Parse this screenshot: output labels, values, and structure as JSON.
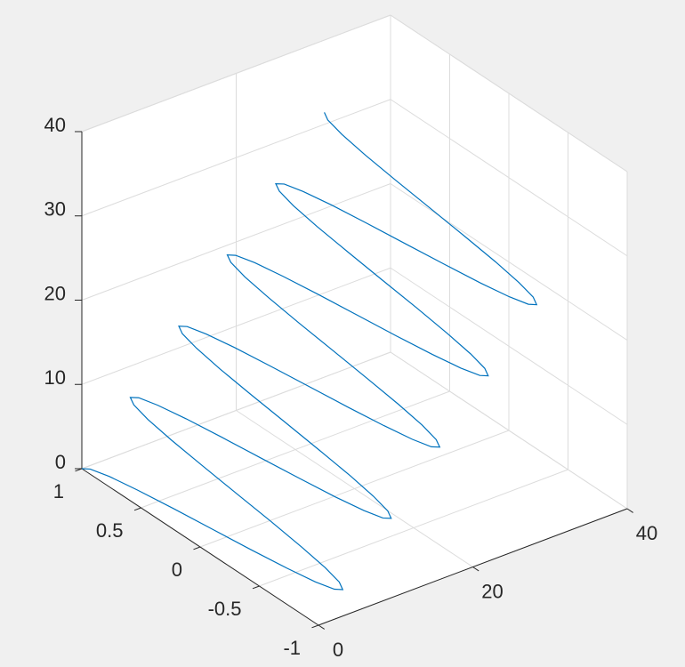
{
  "chart_data": {
    "type": "line3d",
    "x": [
      0,
      0.31,
      0.63,
      0.94,
      1.26,
      1.57,
      1.88,
      2.2,
      2.51,
      2.83,
      3.14,
      3.46,
      3.77,
      4.08,
      4.4,
      4.71,
      5.03,
      5.34,
      5.65,
      5.97,
      6.28,
      6.6,
      6.91,
      7.23,
      7.54,
      7.85,
      8.17,
      8.48,
      8.8,
      9.11,
      9.42,
      9.74,
      10.05,
      10.37,
      10.68,
      11.0,
      11.31,
      11.62,
      11.94,
      12.25,
      12.57,
      12.88,
      13.19,
      13.51,
      13.82,
      14.14,
      14.45,
      14.77,
      15.08,
      15.39,
      15.71,
      16.02,
      16.34,
      16.65,
      16.96,
      17.28,
      17.59,
      17.91,
      18.22,
      18.54,
      18.85,
      19.16,
      19.48,
      19.79,
      20.11,
      20.42,
      20.73,
      21.05,
      21.36,
      21.68,
      21.99,
      22.31,
      22.62,
      22.93,
      23.25,
      23.56,
      23.88,
      24.19,
      24.5,
      24.82,
      25.13,
      25.45,
      25.76,
      26.08,
      26.39,
      26.7,
      27.02,
      27.33,
      27.65,
      27.96,
      28.27,
      28.59,
      28.9,
      29.22,
      29.53,
      29.85,
      30.16,
      30.47,
      30.79,
      31.1,
      31.42
    ],
    "y": [
      1,
      0.95,
      0.81,
      0.59,
      0.31,
      0,
      -0.31,
      -0.59,
      -0.81,
      -0.95,
      -1,
      -0.95,
      -0.81,
      -0.59,
      -0.31,
      0,
      0.31,
      0.59,
      0.81,
      0.95,
      1,
      0.95,
      0.81,
      0.59,
      0.31,
      0,
      -0.31,
      -0.59,
      -0.81,
      -0.95,
      -1,
      -0.95,
      -0.81,
      -0.59,
      -0.31,
      0,
      0.31,
      0.59,
      0.81,
      0.95,
      1,
      0.95,
      0.81,
      0.59,
      0.31,
      0,
      -0.31,
      -0.59,
      -0.81,
      -0.95,
      -1,
      -0.95,
      -0.81,
      -0.59,
      -0.31,
      0,
      0.31,
      0.59,
      0.81,
      0.95,
      1,
      0.95,
      0.81,
      0.59,
      0.31,
      0,
      -0.31,
      -0.59,
      -0.81,
      -0.95,
      -1,
      -0.95,
      -0.81,
      -0.59,
      -0.31,
      0,
      0.31,
      0.59,
      0.81,
      0.95,
      1,
      0.95,
      0.81,
      0.59,
      0.31,
      0,
      -0.31,
      -0.59,
      -0.81,
      -0.95,
      -1,
      -0.95,
      -0.81,
      -0.59,
      -0.31,
      0,
      0.31,
      0.59,
      0.81,
      0.95,
      1
    ],
    "z": [
      0,
      0.31,
      0.63,
      0.94,
      1.26,
      1.57,
      1.88,
      2.2,
      2.51,
      2.83,
      3.14,
      3.46,
      3.77,
      4.08,
      4.4,
      4.71,
      5.03,
      5.34,
      5.65,
      5.97,
      6.28,
      6.6,
      6.91,
      7.23,
      7.54,
      7.85,
      8.17,
      8.48,
      8.8,
      9.11,
      9.42,
      9.74,
      10.05,
      10.37,
      10.68,
      11.0,
      11.31,
      11.62,
      11.94,
      12.25,
      12.57,
      12.88,
      13.19,
      13.51,
      13.82,
      14.14,
      14.45,
      14.77,
      15.08,
      15.39,
      15.71,
      16.02,
      16.34,
      16.65,
      16.96,
      17.28,
      17.59,
      17.91,
      18.22,
      18.54,
      18.85,
      19.16,
      19.48,
      19.79,
      20.11,
      20.42,
      20.73,
      21.05,
      21.36,
      21.68,
      21.99,
      22.31,
      22.62,
      22.93,
      23.25,
      23.56,
      23.88,
      24.19,
      24.5,
      24.82,
      25.13,
      25.45,
      25.76,
      26.08,
      26.39,
      26.7,
      27.02,
      27.33,
      27.65,
      27.96,
      28.27,
      28.59,
      28.9,
      29.22,
      29.53,
      29.85,
      30.16,
      30.47,
      30.79,
      31.1,
      31.42
    ],
    "color": "#0072bd",
    "xlim": [
      0,
      40
    ],
    "ylim": [
      -1,
      1
    ],
    "zlim": [
      0,
      40
    ],
    "xticks": [
      0,
      20,
      40
    ],
    "yticks": [
      -1,
      -0.5,
      0,
      0.5,
      1
    ],
    "zticks": [
      0,
      10,
      20,
      30,
      40
    ],
    "grid": true
  }
}
